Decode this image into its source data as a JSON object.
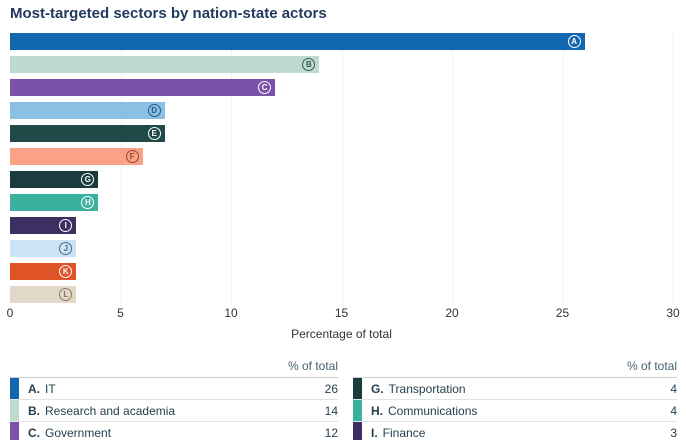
{
  "title": "Most-targeted sectors by nation-state actors",
  "chart_data": {
    "type": "bar",
    "orientation": "horizontal",
    "title": "Most-targeted sectors by nation-state actors",
    "xlabel": "Percentage of total",
    "xlim": [
      0,
      30
    ],
    "xticks": [
      0,
      5,
      10,
      15,
      20,
      25,
      30
    ],
    "grid": true,
    "categories": [
      "A",
      "B",
      "C",
      "D",
      "E",
      "F",
      "G",
      "H",
      "I",
      "J",
      "K",
      "L"
    ],
    "values": [
      26,
      14,
      12,
      7,
      7,
      6,
      4,
      4,
      3,
      3,
      3,
      3
    ],
    "bar_colors": [
      "#1267B1",
      "#C1DACF",
      "#7A52A8",
      "#8AC0E4",
      "#204A48",
      "#F9A287",
      "#1B3C3E",
      "#3AB09E",
      "#3E2F62",
      "#CBE3F2",
      "#DE5426",
      "#E2D8C7"
    ],
    "badge_colors": [
      "#FFFFFF",
      "#2F5D50",
      "#FFFFFF",
      "#235684",
      "#FFFFFF",
      "#9A4429",
      "#FFFFFF",
      "#FFFFFF",
      "#FFFFFF",
      "#3C6E8F",
      "#FFFFFF",
      "#8A795D"
    ]
  },
  "legend_tables": [
    {
      "value_header": "% of total",
      "rows": [
        {
          "letter": "A",
          "name": "IT",
          "value": 26,
          "swatch": "#1267B1"
        },
        {
          "letter": "B",
          "name": "Research and academia",
          "value": 14,
          "swatch": "#C1DACF"
        },
        {
          "letter": "C",
          "name": "Government",
          "value": 12,
          "swatch": "#7A52A8"
        }
      ]
    },
    {
      "value_header": "% of total",
      "rows": [
        {
          "letter": "G",
          "name": "Transportation",
          "value": 4,
          "swatch": "#1B3C3E"
        },
        {
          "letter": "H",
          "name": "Communications",
          "value": 4,
          "swatch": "#3AB09E"
        },
        {
          "letter": "I",
          "name": "Finance",
          "value": 3,
          "swatch": "#3E2F62"
        }
      ]
    }
  ]
}
